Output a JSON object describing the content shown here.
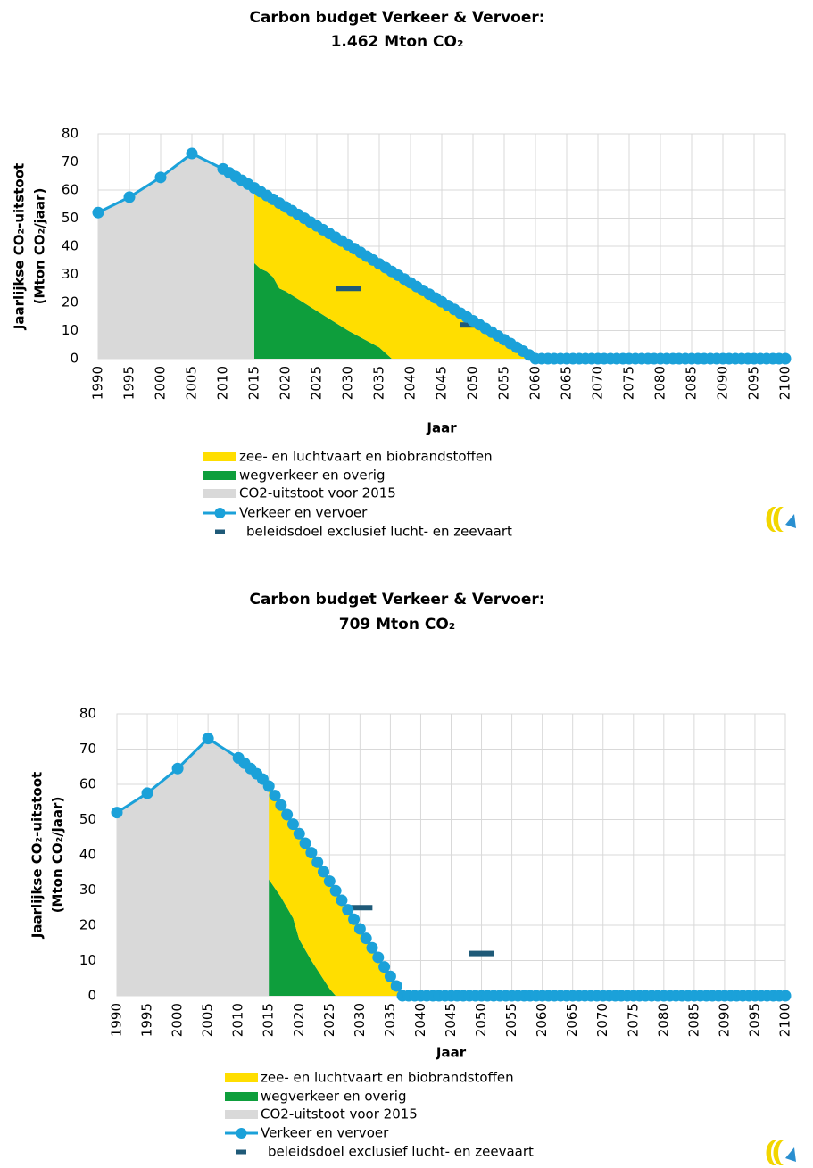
{
  "chart_data": [
    {
      "type": "combo",
      "title": "Carbon budget Verkeer & Vervoer:",
      "subtitle": "1.462 Mton CO₂",
      "y_label": [
        "Jaarlijkse CO₂-uitstoot",
        "(Mton CO₂/jaar)"
      ],
      "x_label": "Jaar",
      "xlim": [
        1990,
        2100
      ],
      "xticks": [
        1990,
        1995,
        2000,
        2005,
        2010,
        2015,
        2020,
        2025,
        2030,
        2035,
        2040,
        2045,
        2050,
        2055,
        2060,
        2065,
        2070,
        2075,
        2080,
        2085,
        2090,
        2095,
        2100
      ],
      "ylim": [
        0,
        80
      ],
      "yticks": [
        0,
        10,
        20,
        30,
        40,
        50,
        60,
        70,
        80
      ],
      "grid": true,
      "series": [
        {
          "name": "zee- en luchtvaart en biobrandstoffen",
          "type": "area",
          "stacked": true,
          "color": "#ffde00",
          "x": [
            2015,
            2016,
            2017,
            2018,
            2019,
            2020,
            2025,
            2030,
            2035,
            2037,
            2040,
            2045,
            2050,
            2055,
            2060
          ],
          "values": [
            26.75,
            27.4,
            27.05,
            27.7,
            30.35,
            30,
            30.25,
            30.5,
            29.75,
            31.05,
            27,
            20.25,
            13.5,
            6.75,
            0
          ]
        },
        {
          "name": "wegverkeer en overig",
          "type": "area",
          "stacked": true,
          "color": "#0e9e3c",
          "x": [
            2015,
            2016,
            2017,
            2018,
            2019,
            2020,
            2025,
            2030,
            2035,
            2037,
            2040,
            2045,
            2050,
            2055,
            2060
          ],
          "values": [
            34,
            32,
            31,
            29,
            25,
            24,
            17,
            10,
            4,
            0,
            0,
            0,
            0,
            0,
            0
          ]
        },
        {
          "name": "CO2-uitstoot voor 2015",
          "type": "area",
          "color": "#d9d9d9",
          "x": [
            1990,
            1995,
            2000,
            2005,
            2010,
            2015
          ],
          "values": [
            52,
            57.5,
            64.5,
            73,
            67.5,
            60.75
          ]
        },
        {
          "name": "Verkeer en vervoer",
          "type": "line",
          "color": "#1ba1d9",
          "x": [
            1990,
            1995,
            2000,
            2005,
            2010,
            2011,
            2012,
            2013,
            2014,
            2015,
            2016,
            2017,
            2018,
            2019,
            2020,
            2021,
            2022,
            2023,
            2024,
            2025,
            2026,
            2027,
            2028,
            2029,
            2030,
            2031,
            2032,
            2033,
            2034,
            2035,
            2036,
            2037,
            2038,
            2039,
            2040,
            2041,
            2042,
            2043,
            2044,
            2045,
            2046,
            2047,
            2048,
            2049,
            2050,
            2051,
            2052,
            2053,
            2054,
            2055,
            2056,
            2057,
            2058,
            2059,
            2060,
            2061,
            2062,
            2063,
            2064,
            2065,
            2066,
            2067,
            2068,
            2069,
            2070,
            2071,
            2072,
            2073,
            2074,
            2075,
            2076,
            2077,
            2078,
            2079,
            2080,
            2081,
            2082,
            2083,
            2084,
            2085,
            2086,
            2087,
            2088,
            2089,
            2090,
            2091,
            2092,
            2093,
            2094,
            2095,
            2096,
            2097,
            2098,
            2099,
            2100
          ],
          "values": [
            52,
            57.5,
            64.5,
            73,
            67.5,
            66.15,
            64.8,
            63.45,
            62.1,
            60.75,
            59.4,
            58.05,
            56.7,
            55.35,
            54,
            52.65,
            51.3,
            49.95,
            48.6,
            47.25,
            45.9,
            44.55,
            43.2,
            41.85,
            40.5,
            39.15,
            37.8,
            36.45,
            35.1,
            33.75,
            32.4,
            31.05,
            29.7,
            28.35,
            27,
            25.65,
            24.3,
            22.95,
            21.6,
            20.25,
            18.9,
            17.55,
            16.2,
            14.85,
            13.5,
            12.15,
            10.8,
            9.45,
            8.1,
            6.75,
            5.4,
            4.05,
            2.7,
            1.35,
            0,
            0,
            0,
            0,
            0,
            0,
            0,
            0,
            0,
            0,
            0,
            0,
            0,
            0,
            0,
            0,
            0,
            0,
            0,
            0,
            0,
            0,
            0,
            0,
            0,
            0,
            0,
            0,
            0,
            0,
            0,
            0,
            0,
            0,
            0,
            0,
            0,
            0,
            0,
            0,
            0
          ]
        },
        {
          "name": "beleidsdoel exclusief lucht- en zeevaart",
          "type": "marker",
          "color": "#1f5a78",
          "x": [
            2030,
            2050
          ],
          "values": [
            25,
            12
          ]
        }
      ]
    },
    {
      "type": "combo",
      "title": "Carbon budget Verkeer & Vervoer:",
      "subtitle": "709 Mton CO₂",
      "y_label": [
        "Jaarlijkse CO₂-uitstoot",
        "(Mton CO₂/jaar)"
      ],
      "x_label": "Jaar",
      "xlim": [
        1990,
        2100
      ],
      "xticks": [
        1990,
        1995,
        2000,
        2005,
        2010,
        2015,
        2020,
        2025,
        2030,
        2035,
        2040,
        2045,
        2050,
        2055,
        2060,
        2065,
        2070,
        2075,
        2080,
        2085,
        2090,
        2095,
        2100
      ],
      "ylim": [
        0,
        80
      ],
      "yticks": [
        0,
        10,
        20,
        30,
        40,
        50,
        60,
        70,
        80
      ],
      "grid": true,
      "series": [
        {
          "name": "zee- en luchtvaart en biobrandstoffen",
          "type": "area",
          "stacked": true,
          "color": "#ffde00",
          "x": [
            2015,
            2017,
            2019,
            2020,
            2022,
            2025,
            2026,
            2030,
            2035,
            2037
          ],
          "values": [
            26.5,
            26.1,
            26.7,
            30,
            30.6,
            30.5,
            29.8,
            19,
            5.5,
            0
          ]
        },
        {
          "name": "wegverkeer en overig",
          "type": "area",
          "stacked": true,
          "color": "#0e9e3c",
          "x": [
            2015,
            2017,
            2019,
            2020,
            2022,
            2025,
            2026,
            2030,
            2035,
            2037
          ],
          "values": [
            33,
            28,
            22,
            16,
            10,
            2,
            0,
            0,
            0,
            0
          ]
        },
        {
          "name": "CO2-uitstoot voor 2015",
          "type": "area",
          "color": "#d9d9d9",
          "x": [
            1990,
            1995,
            2000,
            2005,
            2010,
            2015
          ],
          "values": [
            52,
            57.5,
            64.5,
            73,
            67.5,
            59.5
          ]
        },
        {
          "name": "Verkeer en vervoer",
          "type": "line",
          "color": "#1ba1d9",
          "x": [
            1990,
            1995,
            2000,
            2005,
            2010,
            2011,
            2012,
            2013,
            2014,
            2015,
            2016,
            2017,
            2018,
            2019,
            2020,
            2021,
            2022,
            2023,
            2024,
            2025,
            2026,
            2027,
            2028,
            2029,
            2030,
            2031,
            2032,
            2033,
            2034,
            2035,
            2036,
            2037,
            2038,
            2039,
            2040,
            2041,
            2042,
            2043,
            2044,
            2045,
            2046,
            2047,
            2048,
            2049,
            2050,
            2051,
            2052,
            2053,
            2054,
            2055,
            2056,
            2057,
            2058,
            2059,
            2060,
            2061,
            2062,
            2063,
            2064,
            2065,
            2066,
            2067,
            2068,
            2069,
            2070,
            2071,
            2072,
            2073,
            2074,
            2075,
            2076,
            2077,
            2078,
            2079,
            2080,
            2081,
            2082,
            2083,
            2084,
            2085,
            2086,
            2087,
            2088,
            2089,
            2090,
            2091,
            2092,
            2093,
            2094,
            2095,
            2096,
            2097,
            2098,
            2099,
            2100
          ],
          "values": [
            52,
            57.5,
            64.5,
            73,
            67.5,
            66,
            64.5,
            63,
            61.5,
            59.5,
            56.8,
            54.1,
            51.4,
            48.7,
            46,
            43.3,
            40.6,
            37.9,
            35.2,
            32.5,
            29.8,
            27.1,
            24.4,
            21.7,
            19,
            16.3,
            13.6,
            10.9,
            8.2,
            5.5,
            2.8,
            0,
            0,
            0,
            0,
            0,
            0,
            0,
            0,
            0,
            0,
            0,
            0,
            0,
            0,
            0,
            0,
            0,
            0,
            0,
            0,
            0,
            0,
            0,
            0,
            0,
            0,
            0,
            0,
            0,
            0,
            0,
            0,
            0,
            0,
            0,
            0,
            0,
            0,
            0,
            0,
            0,
            0,
            0,
            0,
            0,
            0,
            0,
            0,
            0,
            0,
            0,
            0,
            0,
            0,
            0,
            0,
            0,
            0,
            0,
            0,
            0,
            0,
            0,
            0
          ]
        },
        {
          "name": "beleidsdoel exclusief lucht- en zeevaart",
          "type": "marker",
          "color": "#1f5a78",
          "x": [
            2030,
            2050
          ],
          "values": [
            25,
            12
          ]
        }
      ]
    }
  ]
}
